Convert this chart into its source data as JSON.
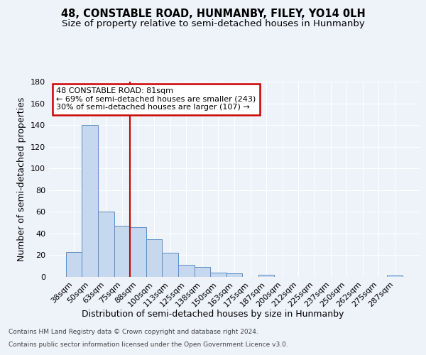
{
  "title": "48, CONSTABLE ROAD, HUNMANBY, FILEY, YO14 0LH",
  "subtitle": "Size of property relative to semi-detached houses in Hunmanby",
  "xlabel": "Distribution of semi-detached houses by size in Hunmanby",
  "ylabel": "Number of semi-detached properties",
  "categories": [
    "38sqm",
    "50sqm",
    "63sqm",
    "75sqm",
    "88sqm",
    "100sqm",
    "113sqm",
    "125sqm",
    "138sqm",
    "150sqm",
    "163sqm",
    "175sqm",
    "187sqm",
    "200sqm",
    "212sqm",
    "225sqm",
    "237sqm",
    "250sqm",
    "262sqm",
    "275sqm",
    "287sqm"
  ],
  "values": [
    23,
    140,
    60,
    47,
    46,
    35,
    22,
    11,
    9,
    4,
    3,
    0,
    2,
    0,
    0,
    0,
    0,
    0,
    0,
    0,
    1
  ],
  "bar_color": "#c5d8f0",
  "bar_edge_color": "#5b8ec4",
  "property_line_x": 3.5,
  "annotation_text_line1": "48 CONSTABLE ROAD: 81sqm",
  "annotation_text_line2": "← 69% of semi-detached houses are smaller (243)",
  "annotation_text_line3": "30% of semi-detached houses are larger (107) →",
  "vline_color": "#cc0000",
  "annotation_box_edge_color": "#cc0000",
  "annotation_box_face_color": "#ffffff",
  "ylim": [
    0,
    180
  ],
  "yticks": [
    0,
    20,
    40,
    60,
    80,
    100,
    120,
    140,
    160,
    180
  ],
  "footer_line1": "Contains HM Land Registry data © Crown copyright and database right 2024.",
  "footer_line2": "Contains public sector information licensed under the Open Government Licence v3.0.",
  "background_color": "#eef2f9",
  "grid_color": "#ffffff",
  "title_fontsize": 10.5,
  "subtitle_fontsize": 9.5,
  "axis_label_fontsize": 9,
  "tick_fontsize": 8,
  "annotation_fontsize": 8,
  "footer_fontsize": 6.5
}
